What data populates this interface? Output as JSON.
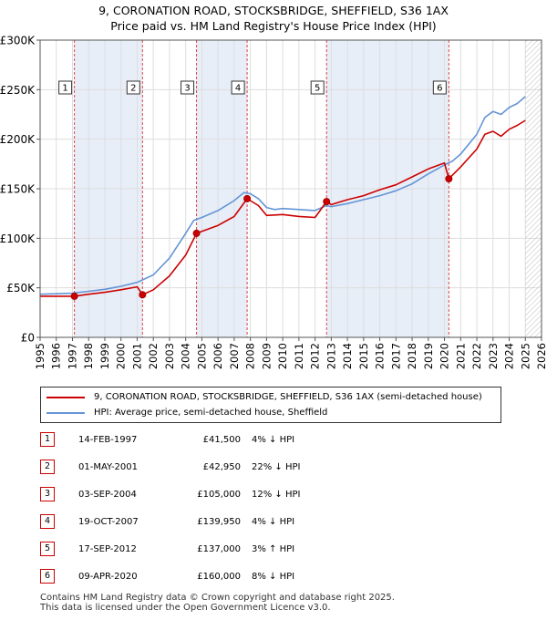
{
  "title_line1": "9, CORONATION ROAD, STOCKSBRIDGE, SHEFFIELD, S36 1AX",
  "title_line2": "Price paid vs. HM Land Registry's House Price Index (HPI)",
  "colors": {
    "property": "#cc0000",
    "hpi": "#6495d6",
    "shade": "#e8eef8",
    "grid": "#dddddd",
    "marker_dash": "#dd4444"
  },
  "legend": {
    "property_label": "9, CORONATION ROAD, STOCKSBRIDGE, SHEFFIELD, S36 1AX (semi-detached house)",
    "hpi_label": "HPI: Average price, semi-detached house, Sheffield"
  },
  "sales": [
    {
      "num": "1",
      "date": "14-FEB-1997",
      "price": "£41,500",
      "hpi": "4% ↓ HPI"
    },
    {
      "num": "2",
      "date": "01-MAY-2001",
      "price": "£42,950",
      "hpi": "22% ↓ HPI"
    },
    {
      "num": "3",
      "date": "03-SEP-2004",
      "price": "£105,000",
      "hpi": "12% ↓ HPI"
    },
    {
      "num": "4",
      "date": "19-OCT-2007",
      "price": "£139,950",
      "hpi": "4% ↓ HPI"
    },
    {
      "num": "5",
      "date": "17-SEP-2012",
      "price": "£137,000",
      "hpi": "3% ↑ HPI"
    },
    {
      "num": "6",
      "date": "09-APR-2020",
      "price": "£160,000",
      "hpi": "8% ↓ HPI"
    }
  ],
  "footer": {
    "line1": "Contains HM Land Registry data © Crown copyright and database right 2025.",
    "line2": "This data is licensed under the Open Government Licence v3.0."
  },
  "chart_data": {
    "type": "line",
    "title": "9, CORONATION ROAD, STOCKSBRIDGE, SHEFFIELD, S36 1AX — Price paid vs. HM Land Registry's House Price Index (HPI)",
    "xlim": [
      1995,
      2026
    ],
    "ylim": [
      0,
      300000
    ],
    "x_ticks": [
      1995,
      1996,
      1997,
      1998,
      1999,
      2000,
      2001,
      2002,
      2003,
      2004,
      2005,
      2006,
      2007,
      2008,
      2009,
      2010,
      2011,
      2012,
      2013,
      2014,
      2015,
      2016,
      2017,
      2018,
      2019,
      2020,
      2021,
      2022,
      2023,
      2024,
      2025,
      2026
    ],
    "y_ticks": [
      0,
      50000,
      100000,
      150000,
      200000,
      250000,
      300000
    ],
    "y_tick_labels": [
      "£0",
      "£50K",
      "£100K",
      "£150K",
      "£200K",
      "£250K",
      "£300K"
    ],
    "future_hatch_from": 2025.0,
    "shaded_spans": [
      [
        1997.12,
        2001.33
      ],
      [
        2004.67,
        2007.8
      ],
      [
        2012.71,
        2020.27
      ]
    ],
    "sale_points": [
      {
        "label": "1",
        "x": 1997.12,
        "y": 41500
      },
      {
        "label": "2",
        "x": 2001.33,
        "y": 42950
      },
      {
        "label": "3",
        "x": 2004.67,
        "y": 105000
      },
      {
        "label": "4",
        "x": 2007.8,
        "y": 139950
      },
      {
        "label": "5",
        "x": 2012.71,
        "y": 137000
      },
      {
        "label": "6",
        "x": 2020.27,
        "y": 160000
      }
    ],
    "series": [
      {
        "name": "HPI: Average price, semi-detached house, Sheffield",
        "points": [
          [
            1995.0,
            43500
          ],
          [
            1996.0,
            44000
          ],
          [
            1997.0,
            44500
          ],
          [
            1998.0,
            46500
          ],
          [
            1999.0,
            48500
          ],
          [
            2000.0,
            51500
          ],
          [
            2001.0,
            55500
          ],
          [
            2002.0,
            63000
          ],
          [
            2003.0,
            80000
          ],
          [
            2004.0,
            105000
          ],
          [
            2004.5,
            118000
          ],
          [
            2005.0,
            121000
          ],
          [
            2006.0,
            128000
          ],
          [
            2007.0,
            138000
          ],
          [
            2007.6,
            146000
          ],
          [
            2008.0,
            145000
          ],
          [
            2008.5,
            140000
          ],
          [
            2009.0,
            131000
          ],
          [
            2009.5,
            129000
          ],
          [
            2010.0,
            130000
          ],
          [
            2011.0,
            129000
          ],
          [
            2012.0,
            128000
          ],
          [
            2012.7,
            133000
          ],
          [
            2013.0,
            132000
          ],
          [
            2014.0,
            135000
          ],
          [
            2015.0,
            139000
          ],
          [
            2016.0,
            143000
          ],
          [
            2017.0,
            148000
          ],
          [
            2018.0,
            155000
          ],
          [
            2019.0,
            165000
          ],
          [
            2020.0,
            174000
          ],
          [
            2020.5,
            178000
          ],
          [
            2021.0,
            185000
          ],
          [
            2022.0,
            205000
          ],
          [
            2022.5,
            222000
          ],
          [
            2023.0,
            228000
          ],
          [
            2023.5,
            225000
          ],
          [
            2024.0,
            232000
          ],
          [
            2024.5,
            236000
          ],
          [
            2025.0,
            243000
          ]
        ]
      },
      {
        "name": "9, CORONATION ROAD, STOCKSBRIDGE, SHEFFIELD, S36 1AX (semi-detached house)",
        "points": [
          [
            1995.0,
            41500
          ],
          [
            1997.12,
            41500
          ],
          [
            1998.0,
            43500
          ],
          [
            1999.0,
            45500
          ],
          [
            2000.0,
            48000
          ],
          [
            2001.0,
            51000
          ],
          [
            2001.33,
            42950
          ],
          [
            2002.0,
            48000
          ],
          [
            2003.0,
            62000
          ],
          [
            2004.0,
            83000
          ],
          [
            2004.67,
            105000
          ],
          [
            2005.0,
            107000
          ],
          [
            2006.0,
            113000
          ],
          [
            2007.0,
            122000
          ],
          [
            2007.8,
            139950
          ],
          [
            2008.0,
            138000
          ],
          [
            2008.5,
            133000
          ],
          [
            2009.0,
            123000
          ],
          [
            2010.0,
            124000
          ],
          [
            2011.0,
            122000
          ],
          [
            2012.0,
            121000
          ],
          [
            2012.71,
            137000
          ],
          [
            2013.0,
            134000
          ],
          [
            2014.0,
            139000
          ],
          [
            2015.0,
            143000
          ],
          [
            2016.0,
            149000
          ],
          [
            2017.0,
            154000
          ],
          [
            2018.0,
            162000
          ],
          [
            2019.0,
            170000
          ],
          [
            2020.0,
            176000
          ],
          [
            2020.27,
            160000
          ],
          [
            2021.0,
            172000
          ],
          [
            2022.0,
            190000
          ],
          [
            2022.5,
            205000
          ],
          [
            2023.0,
            208000
          ],
          [
            2023.5,
            203000
          ],
          [
            2024.0,
            210000
          ],
          [
            2024.5,
            214000
          ],
          [
            2025.0,
            219000
          ]
        ]
      }
    ]
  }
}
